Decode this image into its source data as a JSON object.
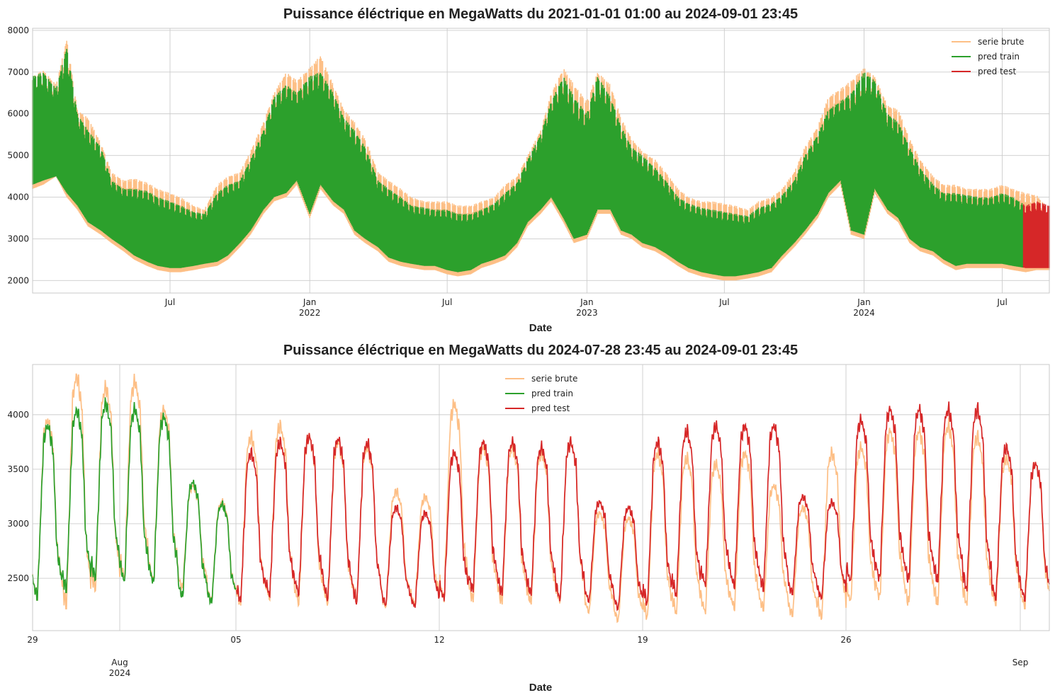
{
  "chart_data": [
    {
      "type": "line",
      "title": "Puissance éléctrique en MegaWatts du 2021-01-01 01:00 au 2024-09-01 23:45",
      "xlabel": "Date",
      "ylabel": "",
      "x_range": [
        "2021-01-01",
        "2024-09-01"
      ],
      "ylim": [
        1700,
        8050
      ],
      "yticks": [
        2000,
        3000,
        4000,
        5000,
        6000,
        7000,
        8000
      ],
      "xticks": [
        {
          "x": "2021-07-01",
          "label": "Jul",
          "sub": ""
        },
        {
          "x": "2022-01-01",
          "label": "Jan",
          "sub": "2022"
        },
        {
          "x": "2022-07-01",
          "label": "Jul",
          "sub": ""
        },
        {
          "x": "2023-01-01",
          "label": "Jan",
          "sub": "2023"
        },
        {
          "x": "2023-07-01",
          "label": "Jul",
          "sub": ""
        },
        {
          "x": "2024-01-01",
          "label": "Jan",
          "sub": "2024"
        },
        {
          "x": "2024-07-01",
          "label": "Jul",
          "sub": ""
        }
      ],
      "grid": true,
      "legend_position": "top-right",
      "series": [
        {
          "name": "serie brute",
          "color": "#fdbf86"
        },
        {
          "name": "pred train",
          "color": "#2ca02c"
        },
        {
          "name": "pred test",
          "color": "#d62728"
        }
      ],
      "envelope": {
        "dates": [
          "2021-01-01",
          "2021-01-15",
          "2021-02-01",
          "2021-02-15",
          "2021-03-01",
          "2021-03-15",
          "2021-04-01",
          "2021-04-15",
          "2021-05-01",
          "2021-05-15",
          "2021-06-01",
          "2021-06-15",
          "2021-07-01",
          "2021-07-15",
          "2021-08-01",
          "2021-08-15",
          "2021-09-01",
          "2021-09-15",
          "2021-10-01",
          "2021-10-15",
          "2021-11-01",
          "2021-11-15",
          "2021-12-01",
          "2021-12-15",
          "2022-01-01",
          "2022-01-15",
          "2022-02-01",
          "2022-02-15",
          "2022-03-01",
          "2022-03-15",
          "2022-04-01",
          "2022-04-15",
          "2022-05-01",
          "2022-05-15",
          "2022-06-01",
          "2022-06-15",
          "2022-07-01",
          "2022-07-15",
          "2022-08-01",
          "2022-08-15",
          "2022-09-01",
          "2022-09-15",
          "2022-10-01",
          "2022-10-15",
          "2022-11-01",
          "2022-11-15",
          "2022-12-01",
          "2022-12-15",
          "2023-01-01",
          "2023-01-15",
          "2023-02-01",
          "2023-02-15",
          "2023-03-01",
          "2023-03-15",
          "2023-04-01",
          "2023-04-15",
          "2023-05-01",
          "2023-05-15",
          "2023-06-01",
          "2023-06-15",
          "2023-07-01",
          "2023-07-15",
          "2023-08-01",
          "2023-08-15",
          "2023-09-01",
          "2023-09-15",
          "2023-10-01",
          "2023-10-15",
          "2023-11-01",
          "2023-11-15",
          "2023-12-01",
          "2023-12-15",
          "2024-01-01",
          "2024-01-15",
          "2024-02-01",
          "2024-02-15",
          "2024-03-01",
          "2024-03-15",
          "2024-04-01",
          "2024-04-15",
          "2024-05-01",
          "2024-05-15",
          "2024-06-01",
          "2024-06-15",
          "2024-07-01",
          "2024-07-15",
          "2024-08-01",
          "2024-08-15",
          "2024-09-01"
        ],
        "serie_max": [
          6900,
          7050,
          6700,
          7800,
          6100,
          5900,
          5300,
          4600,
          4400,
          4450,
          4350,
          4200,
          4100,
          4000,
          3800,
          3700,
          4300,
          4500,
          4600,
          5100,
          5800,
          6500,
          7000,
          6800,
          7100,
          7400,
          6700,
          6100,
          5800,
          5400,
          4600,
          4400,
          4200,
          4000,
          3900,
          3900,
          3900,
          3800,
          3800,
          3900,
          4000,
          4300,
          4500,
          5000,
          5600,
          6500,
          7100,
          6700,
          6300,
          7000,
          6700,
          5900,
          5400,
          5100,
          4900,
          4600,
          4200,
          4000,
          3900,
          3900,
          3850,
          3800,
          3700,
          3900,
          4000,
          4200,
          4600,
          5200,
          5700,
          6400,
          6600,
          6800,
          7100,
          6900,
          6200,
          6100,
          5400,
          4900,
          4500,
          4300,
          4300,
          4200,
          4200,
          4200,
          4300,
          4200,
          4100,
          4050,
          3700
        ],
        "serie_min": [
          4200,
          4300,
          4500,
          4000,
          3700,
          3300,
          3100,
          2900,
          2700,
          2500,
          2350,
          2250,
          2200,
          2200,
          2250,
          2300,
          2350,
          2500,
          2800,
          3100,
          3600,
          3900,
          4000,
          4300,
          3500,
          4200,
          3800,
          3600,
          3100,
          2900,
          2700,
          2450,
          2350,
          2300,
          2250,
          2250,
          2150,
          2100,
          2150,
          2300,
          2400,
          2500,
          2800,
          3300,
          3600,
          3900,
          3400,
          2900,
          3000,
          3600,
          3600,
          3100,
          3000,
          2800,
          2700,
          2550,
          2350,
          2200,
          2100,
          2050,
          2000,
          2000,
          2050,
          2100,
          2200,
          2500,
          2800,
          3100,
          3500,
          4000,
          4300,
          3100,
          3000,
          4100,
          3600,
          3400,
          2900,
          2700,
          2600,
          2400,
          2250,
          2300,
          2300,
          2300,
          2300,
          2250,
          2200,
          2250,
          2250
        ],
        "pred_max": [
          6900,
          7000,
          6600,
          7600,
          6000,
          5600,
          5200,
          4400,
          4200,
          4200,
          4150,
          4000,
          3900,
          3800,
          3650,
          3600,
          4100,
          4300,
          4400,
          4900,
          5600,
          6400,
          6700,
          6500,
          6900,
          7000,
          6500,
          5900,
          5600,
          5200,
          4400,
          4200,
          4000,
          3800,
          3750,
          3700,
          3700,
          3600,
          3600,
          3700,
          3850,
          4100,
          4350,
          4900,
          5500,
          6300,
          6900,
          6400,
          6000,
          6900,
          6400,
          5700,
          5200,
          5000,
          4700,
          4400,
          4000,
          3850,
          3750,
          3700,
          3650,
          3600,
          3550,
          3750,
          3850,
          4050,
          4400,
          5000,
          5500,
          6100,
          6300,
          6500,
          7000,
          6800,
          6000,
          5800,
          5200,
          4700,
          4300,
          4100,
          4100,
          4050,
          4000,
          4000,
          4100,
          4000,
          3800,
          3900,
          3800
        ],
        "pred_min": [
          4300,
          4400,
          4500,
          4100,
          3800,
          3400,
          3200,
          3000,
          2800,
          2600,
          2450,
          2350,
          2300,
          2300,
          2350,
          2400,
          2450,
          2600,
          2900,
          3200,
          3700,
          4000,
          4100,
          4400,
          3600,
          4300,
          3900,
          3700,
          3200,
          3000,
          2800,
          2550,
          2450,
          2400,
          2350,
          2350,
          2250,
          2200,
          2250,
          2400,
          2500,
          2600,
          2900,
          3400,
          3700,
          4000,
          3500,
          3000,
          3100,
          3700,
          3700,
          3200,
          3100,
          2900,
          2800,
          2650,
          2450,
          2300,
          2200,
          2150,
          2100,
          2100,
          2150,
          2200,
          2300,
          2600,
          2900,
          3200,
          3600,
          4100,
          4400,
          3200,
          3100,
          4200,
          3700,
          3500,
          3000,
          2800,
          2700,
          2500,
          2350,
          2400,
          2400,
          2400,
          2400,
          2350,
          2300,
          2300,
          2300
        ],
        "test_start": "2024-07-29"
      }
    },
    {
      "type": "line",
      "title": "Puissance éléctrique en MegaWatts du 2024-07-28 23:45 au 2024-09-01 23:45",
      "xlabel": "Date",
      "ylabel": "",
      "x_range": [
        "2024-07-29",
        "2024-09-02"
      ],
      "ylim": [
        2020,
        4460
      ],
      "yticks": [
        2500,
        3000,
        3500,
        4000
      ],
      "xticks": [
        {
          "x": "2024-07-29",
          "label": "29",
          "sub": ""
        },
        {
          "x": "2024-08-05",
          "label": "05",
          "sub": ""
        },
        {
          "x": "2024-08-12",
          "label": "12",
          "sub": ""
        },
        {
          "x": "2024-08-19",
          "label": "19",
          "sub": ""
        },
        {
          "x": "2024-08-26",
          "label": "26",
          "sub": ""
        }
      ],
      "major_xticks": [
        {
          "x": "2024-08-01",
          "label": "Aug",
          "sub": "2024"
        },
        {
          "x": "2024-09-01",
          "label": "Sep",
          "sub": ""
        }
      ],
      "grid": true,
      "legend_position": "upper center",
      "series": [
        {
          "name": "serie brute",
          "color": "#fdbf86"
        },
        {
          "name": "pred train",
          "color": "#2ca02c"
        },
        {
          "name": "pred test",
          "color": "#d62728"
        }
      ],
      "daily": {
        "dates": [
          "2024-07-29",
          "2024-07-30",
          "2024-07-31",
          "2024-08-01",
          "2024-08-02",
          "2024-08-03",
          "2024-08-04",
          "2024-08-05",
          "2024-08-06",
          "2024-08-07",
          "2024-08-08",
          "2024-08-09",
          "2024-08-10",
          "2024-08-11",
          "2024-08-12",
          "2024-08-13",
          "2024-08-14",
          "2024-08-15",
          "2024-08-16",
          "2024-08-17",
          "2024-08-18",
          "2024-08-19",
          "2024-08-20",
          "2024-08-21",
          "2024-08-22",
          "2024-08-23",
          "2024-08-24",
          "2024-08-25",
          "2024-08-26",
          "2024-08-27",
          "2024-08-28",
          "2024-08-29",
          "2024-08-30",
          "2024-08-31",
          "2024-09-01"
        ],
        "serie_peak": [
          3950,
          4350,
          4250,
          4300,
          4050,
          3350,
          3200,
          3800,
          3900,
          3800,
          3750,
          3700,
          3300,
          3250,
          4100,
          3700,
          3700,
          3650,
          3750,
          3100,
          3050,
          3650,
          3600,
          3550,
          3650,
          3350,
          3150,
          3650,
          3700,
          3850,
          3850,
          3900,
          3800,
          3600,
          3550
        ],
        "serie_trough": [
          2300,
          2220,
          2380,
          2480,
          2450,
          2400,
          2280,
          2250,
          2300,
          2250,
          2250,
          2280,
          2230,
          2250,
          2280,
          2280,
          2260,
          2260,
          2270,
          2180,
          2100,
          2120,
          2170,
          2170,
          2200,
          2200,
          2150,
          2120,
          2270,
          2300,
          2250,
          2250,
          2250,
          2250,
          2220
        ],
        "pred_peak": [
          3900,
          4040,
          4100,
          4050,
          3980,
          3380,
          3180,
          3650,
          3750,
          3800,
          3780,
          3740,
          3150,
          3100,
          3650,
          3750,
          3750,
          3700,
          3750,
          3200,
          3150,
          3750,
          3850,
          3900,
          3900,
          3900,
          3250,
          3200,
          3950,
          4050,
          4050,
          4050,
          4050,
          3700,
          3550
        ],
        "pred_trough": [
          2300,
          2370,
          2480,
          2450,
          2440,
          2320,
          2270,
          2280,
          2330,
          2340,
          2290,
          2260,
          2250,
          2230,
          2290,
          2370,
          2340,
          2340,
          2290,
          2280,
          2210,
          2250,
          2330,
          2420,
          2400,
          2380,
          2350,
          2310,
          2450,
          2470,
          2460,
          2460,
          2380,
          2300,
          2290
        ],
        "test_start": "2024-08-05"
      }
    }
  ]
}
